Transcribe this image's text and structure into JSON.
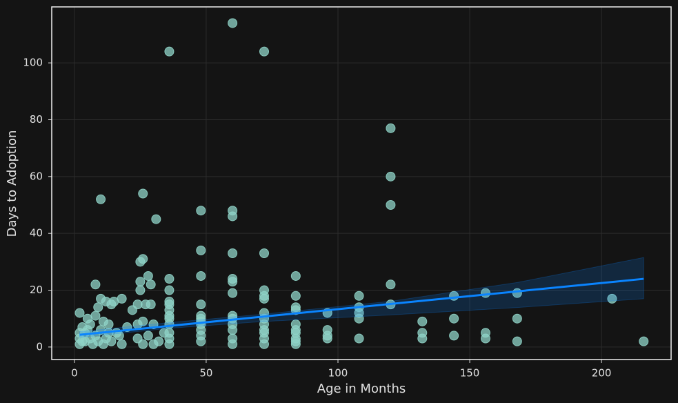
{
  "chart_data": {
    "type": "scatter",
    "x_label": "Age in Months",
    "y_label": "Days to Adoption",
    "xlim": [
      -8.6,
      226.4
    ],
    "ylim": [
      -4.4,
      119.7
    ],
    "xticks": [
      0,
      50,
      100,
      150,
      200
    ],
    "yticks": [
      0,
      20,
      40,
      60,
      80,
      100
    ],
    "grid": true,
    "points": {
      "color": "#8fd3c7",
      "x": [
        36,
        60,
        72,
        120,
        120,
        120,
        10,
        26,
        31,
        48,
        60,
        60,
        48,
        60,
        72,
        26,
        25,
        28,
        48,
        60,
        60,
        36,
        25,
        25,
        29,
        8,
        84,
        120,
        72,
        72,
        72,
        36,
        36,
        36,
        60,
        84,
        108,
        144,
        156,
        168,
        120,
        108,
        108,
        96,
        84,
        84,
        48,
        36,
        36,
        36,
        36,
        60,
        60,
        60,
        72,
        72,
        72,
        48,
        48,
        48,
        48,
        132,
        144,
        168,
        108,
        84,
        204,
        216,
        168,
        156,
        156,
        144,
        132,
        132,
        108,
        96,
        96,
        96,
        84,
        84,
        84,
        84,
        84,
        72,
        72,
        72,
        72,
        60,
        60,
        60,
        48,
        48,
        48,
        36,
        36,
        36,
        2,
        10,
        12,
        15,
        18,
        14,
        9,
        5,
        8,
        3,
        2,
        2,
        2,
        4,
        6,
        8,
        10,
        12,
        14,
        16,
        18,
        20,
        22,
        24,
        24,
        26,
        28,
        30,
        30,
        32,
        34,
        27,
        29,
        24,
        26,
        11,
        13,
        5,
        7,
        9,
        11,
        13,
        17,
        6,
        4,
        3
      ],
      "y": [
        104,
        114,
        104,
        77,
        60,
        50,
        52,
        54,
        45,
        48,
        48,
        46,
        34,
        33,
        33,
        31,
        30,
        25,
        25,
        24,
        23,
        24,
        23,
        20,
        22,
        22,
        25,
        22,
        20,
        18,
        17,
        20,
        16,
        15,
        19,
        18,
        18,
        18,
        19,
        19,
        15,
        14,
        12,
        12,
        14,
        13,
        15,
        13,
        11,
        10,
        8,
        11,
        10,
        8,
        12,
        10,
        8,
        11,
        10,
        9,
        8,
        9,
        10,
        10,
        10,
        8,
        17,
        2,
        2,
        3,
        5,
        4,
        3,
        5,
        3,
        3,
        4,
        6,
        6,
        5,
        3,
        2,
        1,
        6,
        5,
        3,
        1,
        6,
        3,
        1,
        6,
        4,
        2,
        5,
        3,
        1,
        12,
        17,
        16,
        16,
        17,
        15,
        14,
        10,
        11,
        7,
        5,
        3,
        1,
        2,
        3,
        4,
        6,
        3,
        2,
        5,
        1,
        7,
        13,
        8,
        3,
        1,
        4,
        8,
        1,
        2,
        5,
        15,
        15,
        15,
        9,
        9,
        8,
        6,
        1,
        2,
        1,
        5,
        4,
        8,
        5,
        2
      ]
    },
    "fit": {
      "color": "#0a84ff",
      "x": [
        2,
        216
      ],
      "y": [
        4.3,
        24
      ],
      "band_x": [
        2,
        36,
        72,
        120,
        168,
        216
      ],
      "band_lower": [
        3.4,
        6.6,
        9.0,
        11.3,
        13.9,
        17.0
      ],
      "band_upper": [
        5.4,
        8.6,
        11.6,
        16.1,
        22.7,
        31.5
      ]
    }
  }
}
